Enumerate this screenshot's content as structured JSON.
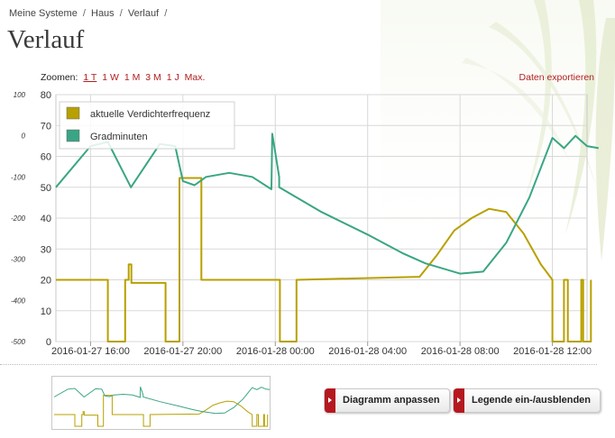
{
  "breadcrumb": [
    {
      "label": "Meine Systeme"
    },
    {
      "label": "Haus"
    },
    {
      "label": "Verlauf"
    }
  ],
  "breadcrumb_separator": "/",
  "page_title": "Verlauf",
  "zoom": {
    "label": "Zoomen:",
    "options": [
      "1 T",
      "1 W",
      "1 M",
      "3 M",
      "1 J",
      "Max."
    ],
    "active": "1 T"
  },
  "export_label": "Daten exportieren",
  "buttons": {
    "adjust": "Diagramm anpassen",
    "legend_toggle": "Legende ein-/ausblenden"
  },
  "colors": {
    "verdichter": "#b8a000",
    "gradminuten": "#3aa584",
    "accent_red": "#b02020",
    "button_icon": "#b5181f"
  },
  "chart_data": {
    "type": "line",
    "x_ticks": [
      "2016-01-27 16:00",
      "2016-01-27 20:00",
      "2016-01-28 00:00",
      "2016-01-28 04:00",
      "2016-01-28 08:00",
      "2016-01-28 12:00"
    ],
    "x_range": [
      "2016-01-27 14:30",
      "2016-01-28 13:30"
    ],
    "right_axis": {
      "ticks": [
        0,
        10,
        20,
        30,
        40,
        50,
        60,
        70,
        80
      ],
      "range": [
        0,
        80
      ]
    },
    "left_axis": {
      "ticks": [
        100,
        0,
        -100,
        -200,
        -300,
        -400,
        -500
      ],
      "range": [
        -500,
        100
      ]
    },
    "grid": true,
    "legend_position": "top-left",
    "series": [
      {
        "name": "aktuelle Verdichterfrequenz",
        "axis": "right",
        "points": [
          [
            "2016-01-27 14:30",
            20
          ],
          [
            "2016-01-27 16:45",
            20
          ],
          [
            "2016-01-27 16:45",
            0
          ],
          [
            "2016-01-27 17:30",
            0
          ],
          [
            "2016-01-27 17:30",
            20
          ],
          [
            "2016-01-27 17:39",
            20
          ],
          [
            "2016-01-27 17:39",
            25
          ],
          [
            "2016-01-27 17:46",
            25
          ],
          [
            "2016-01-27 17:46",
            19
          ],
          [
            "2016-01-27 19:15",
            19
          ],
          [
            "2016-01-27 19:15",
            0
          ],
          [
            "2016-01-27 19:51",
            0
          ],
          [
            "2016-01-27 19:51",
            53
          ],
          [
            "2016-01-27 20:48",
            53
          ],
          [
            "2016-01-27 20:48",
            20
          ],
          [
            "2016-01-28 00:12",
            20
          ],
          [
            "2016-01-28 00:12",
            0
          ],
          [
            "2016-01-28 00:55",
            0
          ],
          [
            "2016-01-28 00:55",
            20
          ],
          [
            "2016-01-28 06:15",
            21
          ],
          [
            "2016-01-28 07:00",
            28
          ],
          [
            "2016-01-28 07:45",
            36
          ],
          [
            "2016-01-28 08:30",
            40
          ],
          [
            "2016-01-28 09:15",
            43
          ],
          [
            "2016-01-28 10:00",
            42
          ],
          [
            "2016-01-28 10:45",
            35
          ],
          [
            "2016-01-28 11:30",
            25
          ],
          [
            "2016-01-28 12:00",
            20
          ],
          [
            "2016-01-28 12:00",
            0
          ],
          [
            "2016-01-28 12:30",
            0
          ],
          [
            "2016-01-28 12:30",
            20
          ],
          [
            "2016-01-28 12:40",
            20
          ],
          [
            "2016-01-28 12:40",
            0
          ],
          [
            "2016-01-28 13:15",
            0
          ],
          [
            "2016-01-28 13:15",
            20
          ],
          [
            "2016-01-28 13:20",
            20
          ],
          [
            "2016-01-28 13:20",
            0
          ],
          [
            "2016-01-28 13:40",
            0
          ],
          [
            "2016-01-28 13:40",
            20
          ]
        ]
      },
      {
        "name": "Gradminuten",
        "axis": "left",
        "points": [
          [
            "2016-01-27 14:30",
            -125
          ],
          [
            "2016-01-27 16:00",
            -25
          ],
          [
            "2016-01-27 16:45",
            -15
          ],
          [
            "2016-01-27 17:45",
            -125
          ],
          [
            "2016-01-27 19:00",
            -20
          ],
          [
            "2016-01-27 19:40",
            -25
          ],
          [
            "2016-01-27 20:00",
            -110
          ],
          [
            "2016-01-27 20:30",
            -120
          ],
          [
            "2016-01-27 21:00",
            -100
          ],
          [
            "2016-01-27 22:00",
            -90
          ],
          [
            "2016-01-27 23:00",
            -100
          ],
          [
            "2016-01-27 23:50",
            -130
          ],
          [
            "2016-01-27 23:52",
            5
          ],
          [
            "2016-01-28 00:10",
            -100
          ],
          [
            "2016-01-28 00:10",
            -125
          ],
          [
            "2016-01-28 02:00",
            -185
          ],
          [
            "2016-01-28 04:00",
            -240
          ],
          [
            "2016-01-28 05:30",
            -285
          ],
          [
            "2016-01-28 06:30",
            -310
          ],
          [
            "2016-01-28 08:00",
            -335
          ],
          [
            "2016-01-28 09:00",
            -330
          ],
          [
            "2016-01-28 10:00",
            -260
          ],
          [
            "2016-01-28 11:00",
            -150
          ],
          [
            "2016-01-28 12:00",
            -5
          ],
          [
            "2016-01-28 12:30",
            -30
          ],
          [
            "2016-01-28 13:00",
            0
          ],
          [
            "2016-01-28 13:30",
            -25
          ],
          [
            "2016-01-28 14:00",
            -30
          ]
        ]
      }
    ]
  }
}
